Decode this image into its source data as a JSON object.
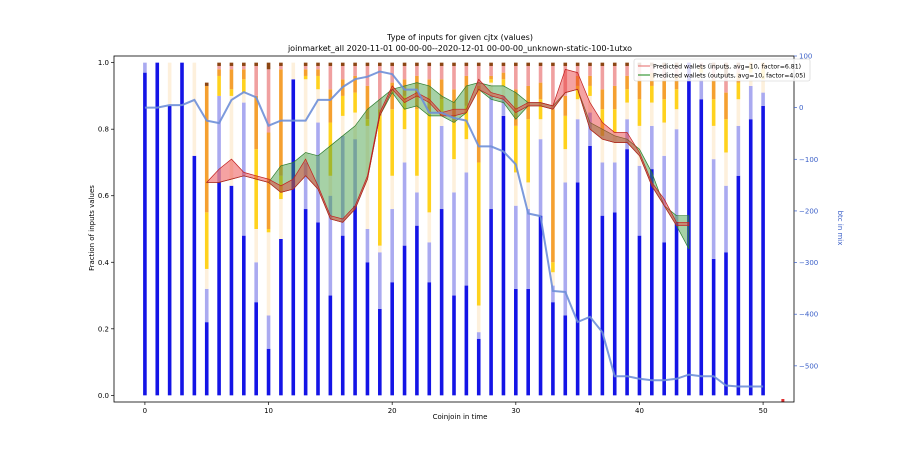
{
  "chart_data": {
    "type": "bar",
    "title": "Type of inputs for given cjtx (values)",
    "subtitle": "joinmarket_all 2020-11-01 00-00-00--2020-12-01 00-00-00_unknown-static-100-1utxo",
    "xlabel": "Coinjoin in time",
    "ylabel": "Fraction of inputs values",
    "y2label": "btc in mix",
    "xlim": [
      -2.5,
      52.5
    ],
    "ylim": [
      -0.02,
      1.02
    ],
    "y2lim": [
      -570,
      100
    ],
    "xticks": [
      "0",
      "10",
      "20",
      "30",
      "40",
      "50"
    ],
    "yticks": [
      "0.0",
      "0.2",
      "0.4",
      "0.6",
      "0.8",
      "1.0"
    ],
    "y2ticks": [
      "100",
      "0",
      "−100",
      "−200",
      "−300",
      "−400",
      "−500"
    ],
    "colors": {
      "segments": [
        "#1414e6",
        "#aaaaf0",
        "#fdf0dc",
        "#ffd21e",
        "#f5a030",
        "#f0a0a0",
        "#8b4513"
      ],
      "mix_line": "#6e8fd8",
      "inputs_band": "#e83030",
      "outputs_band": "#3a9a3a",
      "right_axis": "#3a5fc8"
    },
    "segments_per_coinjoin": [
      [
        0.97,
        0.03,
        0,
        0,
        0,
        0,
        0
      ],
      [
        1.0,
        0,
        0,
        0,
        0,
        0,
        0
      ],
      [
        0.87,
        0,
        0.13,
        0,
        0,
        0,
        0
      ],
      [
        1.0,
        0,
        0,
        0,
        0,
        0,
        0
      ],
      [
        0.72,
        0,
        0.28,
        0,
        0,
        0,
        0
      ],
      [
        0.22,
        0.1,
        0.06,
        0.17,
        0.38,
        0,
        0.01
      ],
      [
        0.64,
        0.26,
        0,
        0.06,
        0.02,
        0.01,
        0.01
      ],
      [
        0.63,
        0,
        0.27,
        0.02,
        0.06,
        0.01,
        0.01
      ],
      [
        0.48,
        0.4,
        0.03,
        0.04,
        0.03,
        0.01,
        0.01
      ],
      [
        0.28,
        0.12,
        0.1,
        0.24,
        0.16,
        0.09,
        0.01
      ],
      [
        0.14,
        0.1,
        0.25,
        0.01,
        0.29,
        0.19,
        0.02
      ],
      [
        0.47,
        0,
        0.12,
        0.07,
        0.32,
        0.01,
        0.01
      ],
      [
        0.95,
        0,
        0.05,
        0,
        0,
        0,
        0
      ],
      [
        0.56,
        0.14,
        0.25,
        0.01,
        0.02,
        0.01,
        0.01
      ],
      [
        0.52,
        0.3,
        0.1,
        0.04,
        0.02,
        0.01,
        0.01
      ],
      [
        0.3,
        0.3,
        0.06,
        0.16,
        0.1,
        0.07,
        0.01
      ],
      [
        0.48,
        0.3,
        0.06,
        0.06,
        0.05,
        0.04,
        0.01
      ],
      [
        0.57,
        0.2,
        0.08,
        0.06,
        0.05,
        0.03,
        0.01
      ],
      [
        0.4,
        0.1,
        0.31,
        0.02,
        0.1,
        0.06,
        0.01
      ],
      [
        0.26,
        0.17,
        0.02,
        0.39,
        0.02,
        0.13,
        0.01
      ],
      [
        0.34,
        0.22,
        0.1,
        0.2,
        0.08,
        0.05,
        0.01
      ],
      [
        0.45,
        0.25,
        0.1,
        0.1,
        0.05,
        0.04,
        0.01
      ],
      [
        0.51,
        0.1,
        0.05,
        0.2,
        0.1,
        0.03,
        0.01
      ],
      [
        0.34,
        0.12,
        0.09,
        0.3,
        0.1,
        0.04,
        0.01
      ],
      [
        0.56,
        0.25,
        0.03,
        0.05,
        0.06,
        0.04,
        0.01
      ],
      [
        0.3,
        0.31,
        0.1,
        0.11,
        0.1,
        0.07,
        0.01
      ],
      [
        0.33,
        0.34,
        0.1,
        0.1,
        0.09,
        0.03,
        0.01
      ],
      [
        0.17,
        0.02,
        0.08,
        0.43,
        0.23,
        0.06,
        0.01
      ],
      [
        0.56,
        0.34,
        0.04,
        0.01,
        0.01,
        0.03,
        0.01
      ],
      [
        0.84,
        0.06,
        0.03,
        0.02,
        0.02,
        0.02,
        0.01
      ],
      [
        0.32,
        0.25,
        0.1,
        0.14,
        0.11,
        0.07,
        0.01
      ],
      [
        0.32,
        0.24,
        0.08,
        0.19,
        0.1,
        0.06,
        0.01
      ],
      [
        0.54,
        0.23,
        0.06,
        0.06,
        0.05,
        0.05,
        0.01
      ],
      [
        0.28,
        0.05,
        0.04,
        0.03,
        0.46,
        0.13,
        0.01
      ],
      [
        0.24,
        0.4,
        0.1,
        0.1,
        0.06,
        0.09,
        0.01
      ],
      [
        0.64,
        0.19,
        0.06,
        0.04,
        0.03,
        0.03,
        0.01
      ],
      [
        0.75,
        0.1,
        0.05,
        0.03,
        0.03,
        0.03,
        0.01
      ],
      [
        0.54,
        0.16,
        0.08,
        0.08,
        0.06,
        0.07,
        0.01
      ],
      [
        0.55,
        0.15,
        0.09,
        0.07,
        0.07,
        0.06,
        0.01
      ],
      [
        0.74,
        0.09,
        0.05,
        0.04,
        0.04,
        0.03,
        0.01
      ],
      [
        0.48,
        0.21,
        0.12,
        0.08,
        0.06,
        0.04,
        0.01
      ],
      [
        0.68,
        0.13,
        0.07,
        0.05,
        0.04,
        0.02,
        0.01
      ],
      [
        0.46,
        0.26,
        0.1,
        0.07,
        0.06,
        0.04,
        0.01
      ],
      [
        0.52,
        0.28,
        0.06,
        0.06,
        0.04,
        0.03,
        0.01
      ],
      [
        1.0,
        0,
        0,
        0,
        0,
        0,
        0
      ],
      [
        0.89,
        0.06,
        0.02,
        0.01,
        0.01,
        0.01,
        0
      ],
      [
        0.41,
        0.3,
        0.1,
        0.08,
        0.06,
        0.04,
        0.01
      ],
      [
        0.43,
        0.2,
        0.1,
        0.1,
        0.08,
        0.05,
        0.04
      ],
      [
        0.66,
        0.15,
        0.08,
        0.05,
        0.03,
        0.02,
        0.01
      ],
      [
        0.83,
        0.1,
        0.04,
        0.02,
        0.01,
        0,
        0
      ],
      [
        0.87,
        0.04,
        0.04,
        0.03,
        0.02,
        0,
        0
      ]
    ],
    "btc_in_mix": {
      "x": [
        0,
        1,
        2,
        3,
        4,
        5,
        6,
        7,
        8,
        9,
        10,
        11,
        12,
        13,
        14,
        15,
        16,
        17,
        18,
        19,
        20,
        21,
        22,
        23,
        24,
        25,
        26,
        27,
        28,
        29,
        30,
        31,
        32,
        33,
        34,
        35,
        36,
        37,
        38,
        39,
        40,
        41,
        42,
        43,
        44,
        45,
        46,
        47,
        48,
        49,
        50
      ],
      "y": [
        0,
        0,
        5,
        5,
        15,
        -25,
        -30,
        15,
        30,
        20,
        -35,
        -25,
        -25,
        -25,
        15,
        15,
        40,
        55,
        60,
        70,
        65,
        35,
        35,
        -10,
        -10,
        -20,
        -25,
        -75,
        -75,
        -85,
        -110,
        -205,
        -210,
        -355,
        -357,
        -415,
        -405,
        -435,
        -520,
        -520,
        -525,
        -528,
        -528,
        -525,
        -517,
        -520,
        -520,
        -538,
        -540,
        -540,
        -540
      ]
    },
    "band_inputs": {
      "name": "Predicted wallets (inputs, avg=10, factor=6.81)",
      "x": [
        5,
        6,
        7,
        8,
        9,
        10,
        11,
        12,
        13,
        14,
        15,
        16,
        17,
        18,
        19,
        20,
        21,
        22,
        23,
        24,
        25,
        26,
        27,
        28,
        29,
        30,
        31,
        32,
        33,
        34,
        35,
        36,
        37,
        38,
        39,
        40,
        41,
        42,
        43,
        44
      ],
      "upper": [
        0.64,
        0.68,
        0.71,
        0.67,
        0.66,
        0.65,
        0.63,
        0.65,
        0.71,
        0.63,
        0.54,
        0.53,
        0.57,
        0.66,
        0.85,
        0.93,
        0.89,
        0.91,
        0.89,
        0.85,
        0.86,
        0.86,
        0.95,
        0.91,
        0.9,
        0.86,
        0.88,
        0.88,
        0.87,
        0.98,
        0.97,
        0.88,
        0.82,
        0.79,
        0.79,
        0.73,
        0.64,
        0.59,
        0.52,
        0.52
      ],
      "lower": [
        0.64,
        0.64,
        0.65,
        0.66,
        0.65,
        0.64,
        0.61,
        0.62,
        0.66,
        0.62,
        0.53,
        0.52,
        0.56,
        0.65,
        0.84,
        0.92,
        0.88,
        0.9,
        0.88,
        0.84,
        0.84,
        0.85,
        0.92,
        0.9,
        0.89,
        0.85,
        0.87,
        0.87,
        0.86,
        0.91,
        0.92,
        0.8,
        0.77,
        0.76,
        0.76,
        0.72,
        0.63,
        0.57,
        0.51,
        0.51
      ]
    },
    "band_outputs": {
      "name": "Predicted wallets (outputs, avg=10, factor=4.05)",
      "x": [
        5,
        6,
        7,
        8,
        9,
        10,
        11,
        12,
        13,
        14,
        15,
        16,
        17,
        18,
        19,
        20,
        21,
        22,
        23,
        24,
        25,
        26,
        27,
        28,
        29,
        30,
        31,
        32,
        33,
        34,
        35,
        36,
        37,
        38,
        39,
        40,
        41,
        42,
        43,
        44
      ],
      "upper": [
        0.64,
        0.64,
        0.65,
        0.66,
        0.65,
        0.64,
        0.69,
        0.7,
        0.73,
        0.72,
        0.75,
        0.78,
        0.81,
        0.86,
        0.89,
        0.92,
        0.93,
        0.94,
        0.93,
        0.9,
        0.88,
        0.93,
        0.94,
        0.93,
        0.93,
        0.91,
        0.88,
        0.88,
        0.87,
        0.91,
        0.92,
        0.82,
        0.8,
        0.78,
        0.77,
        0.74,
        0.67,
        0.57,
        0.54,
        0.54
      ],
      "lower": [
        0.64,
        0.64,
        0.65,
        0.66,
        0.65,
        0.64,
        0.61,
        0.62,
        0.66,
        0.62,
        0.53,
        0.52,
        0.56,
        0.65,
        0.84,
        0.91,
        0.86,
        0.87,
        0.84,
        0.84,
        0.82,
        0.85,
        0.92,
        0.89,
        0.88,
        0.83,
        0.87,
        0.87,
        0.86,
        0.91,
        0.92,
        0.8,
        0.77,
        0.76,
        0.76,
        0.72,
        0.63,
        0.57,
        0.51,
        0.44
      ]
    },
    "legend": [
      {
        "name": "Predicted wallets (inputs, avg=10, factor=6.81)",
        "color": "#e88080"
      },
      {
        "name": "Predicted wallets (outputs, avg=10, factor=4.05)",
        "color": "#3a9a3a"
      }
    ],
    "legend_position": "top-right",
    "grid": false
  }
}
